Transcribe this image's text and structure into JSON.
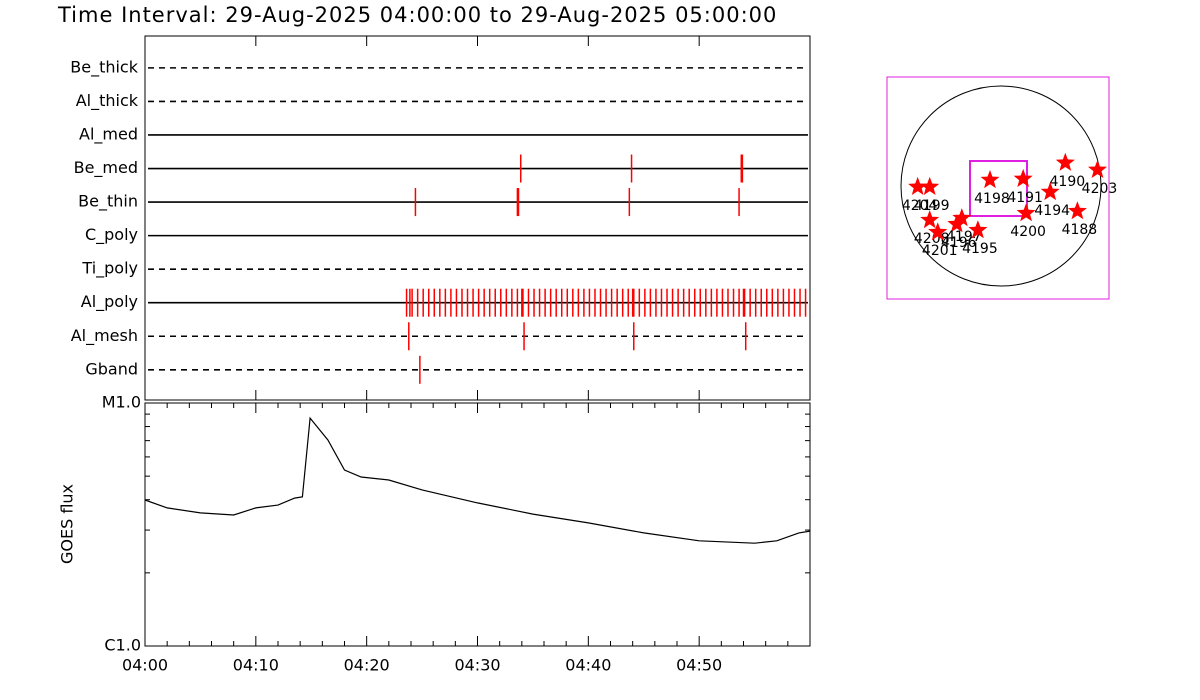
{
  "chart_data": [
    {
      "type": "timeline",
      "title": "Time Interval: 29-Aug-2025 04:00:00 to 29-Aug-2025 05:00:00",
      "categories": [
        "Be_thick",
        "Al_thick",
        "Al_med",
        "Be_med",
        "Be_thin",
        "C_poly",
        "Ti_poly",
        "Al_poly",
        "Al_mesh",
        "Gband"
      ],
      "line_styles": [
        "dashed",
        "dashed",
        "solid",
        "solid",
        "solid",
        "solid",
        "dashed",
        "solid",
        "dashed",
        "dashed"
      ],
      "events": [
        [],
        [],
        [],
        [
          33.9,
          43.9,
          53.8,
          53.9
        ],
        [
          24.4,
          33.6,
          33.7,
          43.7,
          53.6
        ],
        [],
        [],
        [
          23.6,
          23.9,
          24.1,
          24.6,
          25.1,
          25.6,
          26.1,
          26.6,
          27.1,
          27.6,
          28.1,
          28.6,
          29.1,
          29.6,
          30.1,
          30.6,
          31.1,
          31.6,
          32.1,
          32.6,
          33.1,
          33.6,
          34.0,
          34.1,
          34.6,
          35.1,
          35.6,
          36.1,
          36.6,
          37.1,
          37.6,
          38.1,
          38.6,
          39.1,
          39.6,
          40.1,
          40.6,
          41.1,
          41.6,
          42.1,
          42.6,
          43.1,
          43.6,
          44.0,
          44.1,
          44.6,
          45.1,
          45.6,
          46.1,
          46.6,
          47.1,
          47.6,
          48.1,
          48.6,
          49.1,
          49.6,
          50.1,
          50.6,
          51.1,
          51.6,
          52.1,
          52.6,
          53.1,
          53.6,
          54.0,
          54.1,
          54.6,
          55.1,
          55.6,
          56.1,
          56.6,
          57.1,
          57.6,
          58.1,
          58.6,
          59.1,
          59.6
        ],
        [
          23.8,
          34.2,
          44.1,
          54.2
        ],
        [
          24.8
        ]
      ],
      "color": "#ff0000",
      "xlim": [
        0,
        60
      ],
      "xticks": [
        0,
        10,
        20,
        30,
        40,
        50,
        60
      ]
    },
    {
      "type": "line",
      "ylabel": "GOES flux",
      "log": true,
      "x": [
        0,
        2,
        5,
        8,
        10,
        12,
        13.5,
        14.2,
        14.9,
        16.5,
        18,
        19.5,
        22,
        25,
        30,
        35,
        40,
        45,
        50,
        55,
        57,
        59,
        60
      ],
      "values": [
        3.99e-06,
        3.7e-06,
        3.53e-06,
        3.46e-06,
        3.7e-06,
        3.8e-06,
        4.06e-06,
        4.11e-06,
        8.67e-06,
        7.04e-06,
        5.3e-06,
        4.96e-06,
        4.82e-06,
        4.39e-06,
        3.88e-06,
        3.49e-06,
        3.21e-06,
        2.92e-06,
        2.71e-06,
        2.65e-06,
        2.71e-06,
        2.92e-06,
        2.97e-06
      ],
      "color": "#000000",
      "xlim": [
        0,
        60
      ],
      "xticks": [
        {
          "value": 0,
          "label": "04:00"
        },
        {
          "value": 10,
          "label": "04:10"
        },
        {
          "value": 20,
          "label": "04:20"
        },
        {
          "value": 30,
          "label": "04:30"
        },
        {
          "value": 40,
          "label": "04:40"
        },
        {
          "value": 50,
          "label": "04:50"
        }
      ],
      "xminor_ticks": [
        2,
        4,
        6,
        8,
        12,
        14,
        16,
        18,
        22,
        24,
        26,
        28,
        32,
        34,
        36,
        38,
        42,
        44,
        46,
        48,
        52,
        54,
        56,
        58
      ],
      "ylim": [
        1e-06,
        1e-05
      ],
      "yticks": [
        {
          "value": 1e-06,
          "label": "C1.0"
        },
        {
          "value": 1e-05,
          "label": "M1.0"
        }
      ],
      "yminor_ticks": [
        2e-06,
        3e-06,
        4e-06,
        5e-06,
        6e-06,
        7e-06,
        8e-06,
        9e-06
      ]
    },
    {
      "type": "scatter",
      "marker": "star",
      "color": "#ff0000",
      "labels": [
        "4204",
        "4199",
        "4208",
        "4201",
        "4196",
        "4197",
        "4195",
        "4198",
        "4191",
        "4190",
        "4203",
        "4194",
        "4200",
        "4188"
      ],
      "x": [
        -760,
        -646,
        -646,
        -570,
        -390,
        -342,
        -190,
        -76,
        238,
        637,
        941,
        494,
        266,
        751
      ],
      "y": [
        10,
        10,
        -304,
        -418,
        -342,
        -285,
        -399,
        76,
        86,
        238,
        171,
        -38,
        -238,
        -219
      ],
      "xlim": [
        -1050,
        1050
      ],
      "ylim": [
        -1050,
        1050
      ]
    }
  ]
}
